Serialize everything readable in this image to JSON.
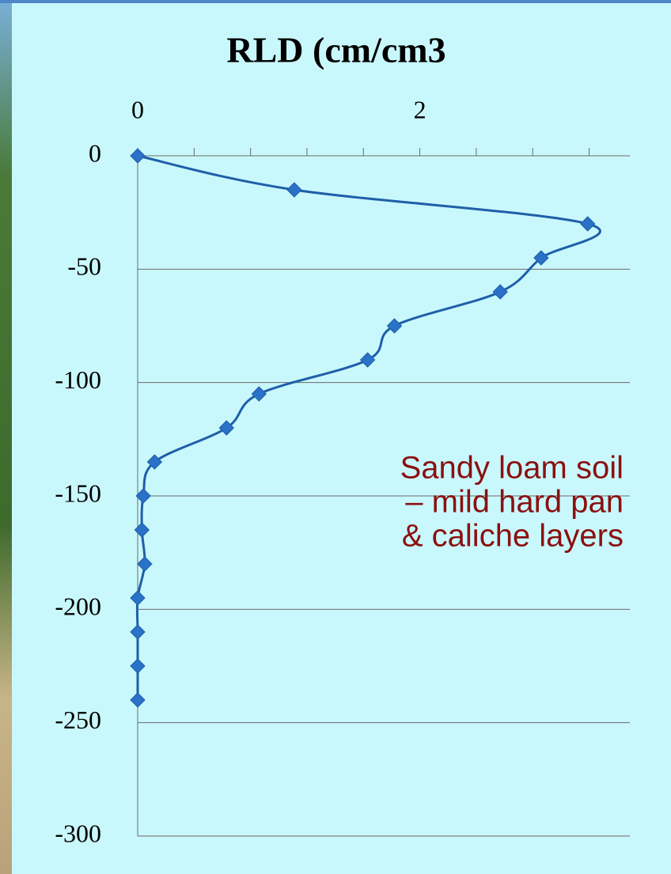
{
  "chart_data": {
    "type": "line",
    "title": "RLD (cm/cm3",
    "x": [
      0,
      1.11,
      3.19,
      2.86,
      2.57,
      1.82,
      1.63,
      0.86,
      0.63,
      0.12,
      0.04,
      0.03,
      0.05,
      0,
      0,
      0,
      0
    ],
    "series": [
      {
        "color": "#1f5fa8",
        "values": [
          0,
          -15,
          -30,
          -45,
          -60,
          -75,
          -90,
          -105,
          -120,
          -135,
          -150,
          -165,
          -180,
          -195,
          -210,
          -225,
          -240
        ]
      }
    ],
    "xlim": [
      0,
      3.5
    ],
    "xticks": [
      0,
      2
    ],
    "x_minor_ticks": [
      0.4,
      0.8,
      1.2,
      1.6,
      2.4,
      2.8,
      3.2
    ],
    "ylim": [
      -300,
      0
    ],
    "yticks": [
      0,
      -50,
      -100,
      -150,
      -200,
      -250,
      -300
    ],
    "grid": true,
    "smooth": true,
    "annotation": [
      "Sandy loam soil",
      "– mild hard pan",
      "& caliche layers"
    ],
    "annotation_color": "#8b1010"
  }
}
